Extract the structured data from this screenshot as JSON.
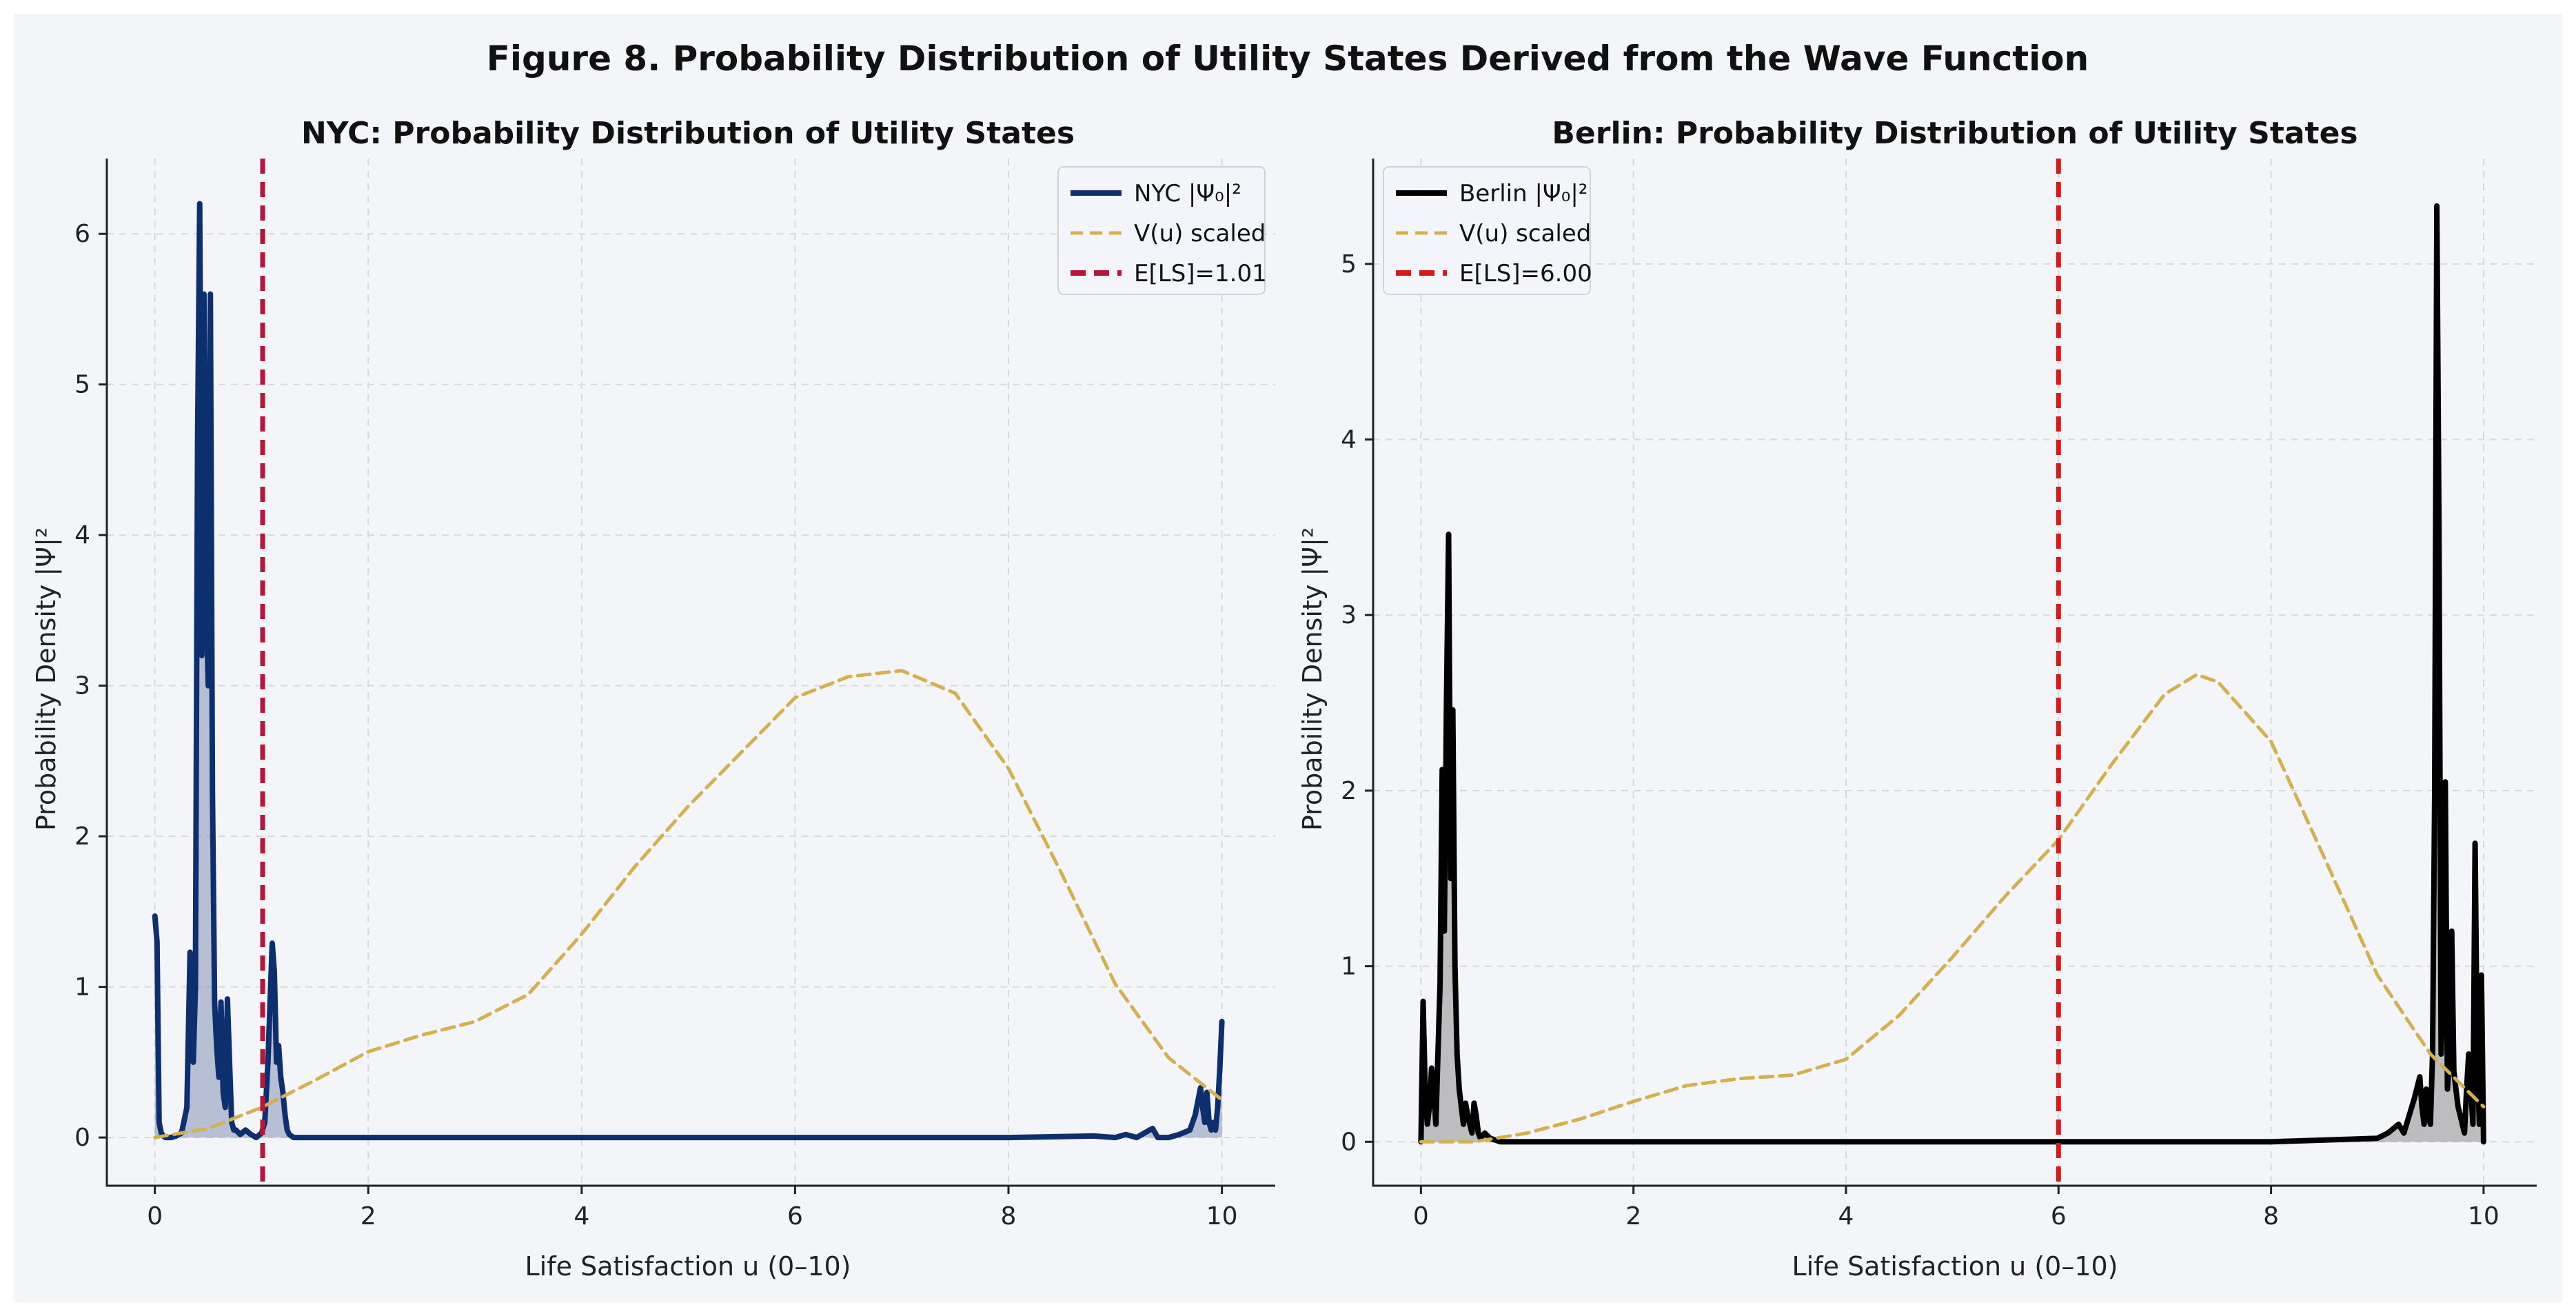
{
  "figure": {
    "title": "Figure 8. Probability Distribution of Utility States Derived from the Wave Function",
    "background": "#f4f5f9"
  },
  "chart_data": [
    {
      "type": "line",
      "title": "NYC: Probability Distribution of Utility States",
      "xlabel": "Life Satisfaction u (0–10)",
      "ylabel": "Probability Density |Ψ|²",
      "xlim": [
        -0.45,
        10.5
      ],
      "ylim": [
        -0.32,
        6.5
      ],
      "xticks": [
        0,
        2,
        4,
        6,
        8,
        10
      ],
      "yticks": [
        0,
        1,
        2,
        3,
        4,
        5,
        6
      ],
      "grid": true,
      "legend_position": "top-right",
      "expected_value": 1.01,
      "series": [
        {
          "name": "NYC |Ψ₀|²",
          "color": "#0d2f6e",
          "style": "solid",
          "fill": true,
          "x": [
            0,
            0.02,
            0.04,
            0.06,
            0.08,
            0.1,
            0.15,
            0.2,
            0.25,
            0.3,
            0.33,
            0.36,
            0.38,
            0.4,
            0.42,
            0.44,
            0.46,
            0.48,
            0.5,
            0.52,
            0.54,
            0.56,
            0.58,
            0.6,
            0.62,
            0.64,
            0.66,
            0.68,
            0.7,
            0.72,
            0.74,
            0.76,
            0.8,
            0.85,
            0.9,
            0.95,
            1.0,
            1.03,
            1.06,
            1.08,
            1.1,
            1.12,
            1.14,
            1.16,
            1.18,
            1.2,
            1.22,
            1.24,
            1.26,
            1.28,
            1.3,
            1.35,
            1.4,
            1.5,
            2,
            4,
            6,
            8,
            8.8,
            9.0,
            9.1,
            9.2,
            9.3,
            9.35,
            9.4,
            9.5,
            9.6,
            9.7,
            9.75,
            9.8,
            9.82,
            9.84,
            9.86,
            9.88,
            9.9,
            9.92,
            9.94,
            9.96,
            9.98,
            10.0
          ],
          "y": [
            1.47,
            1.3,
            0.1,
            0.03,
            0.01,
            0.0,
            0.0,
            0.01,
            0.03,
            0.2,
            1.23,
            0.5,
            1.0,
            4.6,
            6.2,
            3.2,
            5.6,
            3.6,
            3.0,
            5.6,
            2.3,
            0.9,
            0.6,
            0.4,
            0.9,
            0.3,
            0.2,
            0.92,
            0.5,
            0.1,
            0.05,
            0.05,
            0.02,
            0.05,
            0.02,
            0.0,
            0.03,
            0.1,
            0.5,
            0.9,
            1.29,
            1.1,
            0.5,
            0.61,
            0.4,
            0.3,
            0.15,
            0.05,
            0.02,
            0.01,
            0.0,
            0.0,
            0.0,
            0.0,
            0.0,
            0.0,
            0.0,
            0.0,
            0.01,
            0.0,
            0.02,
            0.0,
            0.04,
            0.06,
            0.0,
            0.0,
            0.02,
            0.05,
            0.15,
            0.33,
            0.2,
            0.1,
            0.3,
            0.1,
            0.05,
            0.1,
            0.05,
            0.2,
            0.45,
            0.77
          ]
        },
        {
          "name": "V(u) scaled",
          "color": "#d4b050",
          "style": "dashed",
          "x": [
            0,
            0.5,
            1,
            1.5,
            2,
            2.5,
            3,
            3.5,
            4,
            4.5,
            5,
            5.5,
            6,
            6.5,
            7,
            7.5,
            8,
            8.5,
            9,
            9.5,
            10
          ],
          "y": [
            0.0,
            0.06,
            0.2,
            0.38,
            0.57,
            0.68,
            0.77,
            0.95,
            1.35,
            1.8,
            2.2,
            2.56,
            2.92,
            3.06,
            3.1,
            2.95,
            2.45,
            1.75,
            1.02,
            0.53,
            0.25
          ]
        },
        {
          "name": "E[LS]=1.01",
          "color": "#b8143c",
          "style": "dashed-vertical",
          "x": [
            1.01,
            1.01
          ],
          "y": [
            -0.32,
            6.5
          ]
        }
      ]
    },
    {
      "type": "line",
      "title": "Berlin: Probability Distribution of Utility States",
      "xlabel": "Life Satisfaction u (0–10)",
      "ylabel": "Probability Density |Ψ|²",
      "xlim": [
        -0.45,
        10.5
      ],
      "ylim": [
        -0.25,
        5.6
      ],
      "xticks": [
        0,
        2,
        4,
        6,
        8,
        10
      ],
      "yticks": [
        0,
        1,
        2,
        3,
        4,
        5
      ],
      "grid": true,
      "legend_position": "top-left",
      "expected_value": 6.0,
      "series": [
        {
          "name": "Berlin |Ψ₀|²",
          "color": "#000000",
          "style": "solid",
          "fill": true,
          "x": [
            0,
            0.02,
            0.04,
            0.06,
            0.08,
            0.1,
            0.12,
            0.14,
            0.16,
            0.18,
            0.2,
            0.22,
            0.24,
            0.26,
            0.28,
            0.3,
            0.32,
            0.34,
            0.36,
            0.38,
            0.4,
            0.42,
            0.44,
            0.46,
            0.48,
            0.5,
            0.52,
            0.54,
            0.56,
            0.6,
            0.65,
            0.7,
            0.75,
            0.8,
            0.9,
            1.0,
            2,
            4,
            6,
            8,
            9.0,
            9.1,
            9.2,
            9.25,
            9.3,
            9.35,
            9.4,
            9.42,
            9.44,
            9.46,
            9.48,
            9.5,
            9.52,
            9.54,
            9.56,
            9.58,
            9.6,
            9.62,
            9.64,
            9.66,
            9.68,
            9.7,
            9.72,
            9.74,
            9.76,
            9.78,
            9.8,
            9.82,
            9.84,
            9.86,
            9.88,
            9.9,
            9.92,
            9.94,
            9.96,
            9.98,
            10.0
          ],
          "y": [
            0.0,
            0.8,
            0.3,
            0.1,
            0.2,
            0.42,
            0.3,
            0.1,
            0.5,
            0.9,
            2.12,
            1.2,
            2.5,
            3.46,
            1.5,
            2.46,
            1.0,
            0.5,
            0.3,
            0.2,
            0.1,
            0.22,
            0.15,
            0.1,
            0.05,
            0.22,
            0.15,
            0.05,
            0.02,
            0.05,
            0.02,
            0.01,
            0.0,
            0.0,
            0.0,
            0.0,
            0.0,
            0.0,
            0.0,
            0.0,
            0.02,
            0.05,
            0.1,
            0.05,
            0.15,
            0.25,
            0.37,
            0.2,
            0.1,
            0.3,
            0.15,
            0.1,
            0.5,
            2.0,
            5.33,
            3.5,
            0.5,
            1.0,
            2.05,
            0.3,
            0.5,
            1.2,
            0.4,
            0.3,
            0.2,
            0.15,
            0.1,
            0.05,
            0.3,
            0.5,
            0.3,
            0.1,
            1.7,
            0.5,
            0.1,
            0.95,
            0.0
          ]
        },
        {
          "name": "V(u) scaled",
          "color": "#d4b050",
          "style": "dashed",
          "x": [
            0,
            0.5,
            1,
            1.5,
            2,
            2.5,
            3,
            3.5,
            4,
            4.5,
            5,
            5.5,
            6,
            6.5,
            7,
            7.3,
            7.5,
            8,
            8.5,
            9,
            9.5,
            10
          ],
          "y": [
            0.0,
            0.0,
            0.05,
            0.13,
            0.23,
            0.32,
            0.36,
            0.38,
            0.47,
            0.72,
            1.05,
            1.4,
            1.72,
            2.15,
            2.55,
            2.66,
            2.62,
            2.28,
            1.62,
            0.95,
            0.5,
            0.2
          ]
        },
        {
          "name": "E[LS]=6.00",
          "color": "#d61a1a",
          "style": "dashed-vertical",
          "x": [
            6.0,
            6.0
          ],
          "y": [
            -0.25,
            5.6
          ]
        }
      ]
    }
  ]
}
